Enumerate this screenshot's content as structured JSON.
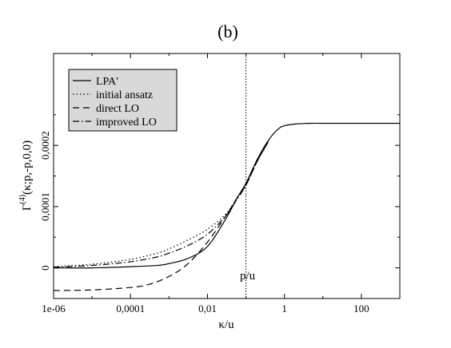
{
  "panel_label": "(b)",
  "annotation": "p/u",
  "chart_data": {
    "type": "line",
    "title": "",
    "xlabel": "κ/u",
    "ylabel_main": "Γ",
    "ylabel_sup": "(4)",
    "ylabel_rest": "(κ;p,-p,0,0)",
    "xscale": "log",
    "xlim": [
      1e-06,
      1000
    ],
    "ylim": [
      -5e-05,
      0.00035
    ],
    "x_ticks": [
      {
        "value": 1e-06,
        "label": "1e-06"
      },
      {
        "value": 0.0001,
        "label": "0,0001"
      },
      {
        "value": 0.01,
        "label": "0,01"
      },
      {
        "value": 1,
        "label": "1"
      },
      {
        "value": 100,
        "label": "100"
      }
    ],
    "y_ticks": [
      {
        "value": 0,
        "label": "0"
      },
      {
        "value": 0.0001,
        "label": "0,0001"
      },
      {
        "value": 0.0002,
        "label": "0,0002"
      }
    ],
    "vline": {
      "x": 0.1
    },
    "legend_position": "top-left",
    "series": [
      {
        "name": "LPA'",
        "style": "solid",
        "x": [
          1e-06,
          1e-05,
          0.0001,
          0.0005,
          0.001,
          0.003,
          0.01,
          0.03,
          0.06,
          0.1,
          0.2,
          0.4,
          0.7,
          1,
          2,
          5,
          10,
          100,
          1000
        ],
        "y": [
          0,
          0,
          2e-06,
          4e-06,
          7e-06,
          1.5e-05,
          3.5e-05,
          8e-05,
          0.000115,
          0.000138,
          0.000178,
          0.00021,
          0.000227,
          0.000232,
          0.000235,
          0.000236,
          0.000236,
          0.000236,
          0.000236
        ]
      },
      {
        "name": "initial ansatz",
        "style": "dotted",
        "x": [
          1e-06,
          1e-05,
          0.0001,
          0.0005,
          0.001,
          0.003,
          0.01,
          0.03,
          0.06,
          0.1,
          0.2,
          0.4
        ],
        "y": [
          2e-06,
          6e-06,
          1.4e-05,
          2.4e-05,
          3.1e-05,
          4.5e-05,
          6.3e-05,
          8.8e-05,
          0.000115,
          0.000135,
          0.000175,
          0.000208
        ]
      },
      {
        "name": "direct LO",
        "style": "dashed",
        "x": [
          1e-06,
          1e-05,
          0.0001,
          0.0003,
          0.001,
          0.003,
          0.01,
          0.03,
          0.06,
          0.1,
          0.2,
          0.4
        ],
        "y": [
          -3.7e-05,
          -3.6e-05,
          -3.2e-05,
          -2.7e-05,
          -1.4e-05,
          6e-06,
          4.2e-05,
          8.5e-05,
          0.000115,
          0.000135,
          0.000175,
          0.000208
        ]
      },
      {
        "name": "improved LO",
        "style": "dashdot",
        "x": [
          1e-06,
          1e-05,
          0.0001,
          0.0005,
          0.001,
          0.003,
          0.01,
          0.03,
          0.06,
          0.1,
          0.2,
          0.4
        ],
        "y": [
          1e-06,
          4e-06,
          1e-05,
          1.8e-05,
          2.4e-05,
          3.6e-05,
          5.5e-05,
          8.5e-05,
          0.000113,
          0.000135,
          0.000175,
          0.000208
        ]
      }
    ]
  }
}
